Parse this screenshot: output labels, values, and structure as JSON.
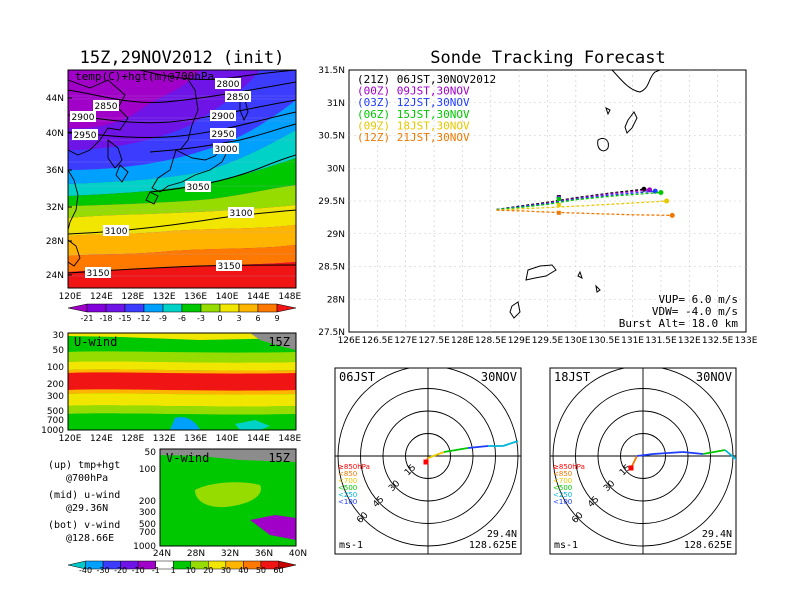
{
  "map_title": "15Z,29NOV2012 (init)",
  "map_sub": "temp(C)+hgt(m)@700hPa",
  "map_xticks": [
    "120E",
    "124E",
    "128E",
    "132E",
    "136E",
    "140E",
    "144E",
    "148E"
  ],
  "map_yticks": [
    "44N",
    "40N",
    "36N",
    "32N",
    "28N",
    "24N"
  ],
  "contours": [
    "2800",
    "2850",
    "2850",
    "2900",
    "2900",
    "2950",
    "2950",
    "3000",
    "3050",
    "3100",
    "3100",
    "3150",
    "3150"
  ],
  "temp_cb": [
    "-21",
    "-18",
    "-15",
    "-12",
    "-9",
    "-6",
    "-3",
    "0",
    "3",
    "6",
    "9"
  ],
  "u_title": "U-wind",
  "u_time": "15Z",
  "u_yticks": [
    "30",
    "50",
    "100",
    "200",
    "300",
    "500",
    "700",
    "1000"
  ],
  "u_xticks": [
    "120E",
    "124E",
    "128E",
    "132E",
    "136E",
    "140E",
    "144E",
    "148E"
  ],
  "v_title": "V-wind",
  "v_time": "15Z",
  "v_yticks": [
    "50",
    "100",
    "200",
    "300",
    "500",
    "700",
    "1000"
  ],
  "v_xticks": [
    "24N",
    "28N",
    "32N",
    "36N",
    "40N"
  ],
  "wind_cb": [
    "-40",
    "-30",
    "-20",
    "-10",
    "-1",
    "1",
    "10",
    "20",
    "30",
    "40",
    "50",
    "60"
  ],
  "notes": [
    [
      "(up) tmp+hgt",
      "@700hPa"
    ],
    [
      "(mid) u-wind",
      "@29.36N"
    ],
    [
      "(bot) v-wind",
      "@128.66E"
    ]
  ],
  "track_title": "Sonde Tracking Forecast",
  "legend": [
    {
      "text": "(21Z) 06JST,30NOV2012",
      "color": "#000000"
    },
    {
      "text": "(00Z) 09JST,30NOV",
      "color": "#a000c8"
    },
    {
      "text": "(03Z) 12JST,30NOV",
      "color": "#1e3cff"
    },
    {
      "text": "(06Z) 15JST,30NOV",
      "color": "#00c800"
    },
    {
      "text": "(09Z) 18JST,30NOV",
      "color": "#e6c800"
    },
    {
      "text": "(12Z) 21JST,30NOV",
      "color": "#f07800"
    }
  ],
  "track_yticks": [
    "31.5N",
    "31N",
    "30.5N",
    "30N",
    "29.5N",
    "29N",
    "28.5N",
    "28N",
    "27.5N"
  ],
  "track_xticks": [
    "126E",
    "126.5E",
    "127E",
    "127.5E",
    "128E",
    "128.5E",
    "129E",
    "129.5E",
    "130E",
    "130.5E",
    "131E",
    "131.5E",
    "132E",
    "132.5E",
    "133E"
  ],
  "vup": "VUP= 6.0 m/s",
  "vdw": "VDW= -4.0 m/s",
  "burst": "Burst Alt= 18.0 km",
  "hodo": [
    {
      "time": "06JST",
      "date": "30NOV",
      "lat": "29.4N",
      "lon": "128.625E"
    },
    {
      "time": "18JST",
      "date": "30NOV",
      "lat": "29.4N",
      "lon": "128.625E"
    }
  ],
  "hodo_ring_labels": [
    "15",
    "30",
    "45",
    "60"
  ],
  "hodo_levels": [
    {
      "text": "≥850hPa",
      "color": "#ff0000"
    },
    {
      "text": "<850",
      "color": "#f07800"
    },
    {
      "text": "<700",
      "color": "#e6c800"
    },
    {
      "text": "<500",
      "color": "#00c800"
    },
    {
      "text": "<250",
      "color": "#00b4dc"
    },
    {
      "text": "<100",
      "color": "#1e3cff"
    }
  ],
  "hodo_unit": "ms-1",
  "track_series": [
    {
      "color": "#000000",
      "pts": [
        [
          128.6,
          29.37
        ],
        [
          129.0,
          29.42
        ],
        [
          129.5,
          29.48
        ],
        [
          130.0,
          29.55
        ],
        [
          130.6,
          29.62
        ],
        [
          131.2,
          29.68
        ]
      ]
    },
    {
      "color": "#a000c8",
      "pts": [
        [
          128.6,
          29.37
        ],
        [
          129.0,
          29.41
        ],
        [
          129.5,
          29.47
        ],
        [
          130.0,
          29.54
        ],
        [
          130.6,
          29.61
        ],
        [
          131.3,
          29.67
        ]
      ]
    },
    {
      "color": "#1e3cff",
      "pts": [
        [
          128.6,
          29.37
        ],
        [
          129.0,
          29.41
        ],
        [
          129.5,
          29.46
        ],
        [
          130.0,
          29.53
        ],
        [
          130.6,
          29.59
        ],
        [
          131.4,
          29.65
        ]
      ]
    },
    {
      "color": "#00c800",
      "pts": [
        [
          128.6,
          29.37
        ],
        [
          129.0,
          29.4
        ],
        [
          129.5,
          29.45
        ],
        [
          130.0,
          29.52
        ],
        [
          130.7,
          29.58
        ],
        [
          131.5,
          29.63
        ]
      ]
    },
    {
      "color": "#e6c800",
      "pts": [
        [
          128.6,
          29.36
        ],
        [
          129.0,
          29.38
        ],
        [
          129.5,
          29.4
        ],
        [
          130.2,
          29.43
        ],
        [
          131.0,
          29.47
        ],
        [
          131.6,
          29.5
        ]
      ]
    },
    {
      "color": "#f07800",
      "pts": [
        [
          128.6,
          29.36
        ],
        [
          129.0,
          29.35
        ],
        [
          129.5,
          29.33
        ],
        [
          130.2,
          29.31
        ],
        [
          131.0,
          29.29
        ],
        [
          131.7,
          29.28
        ]
      ]
    }
  ]
}
